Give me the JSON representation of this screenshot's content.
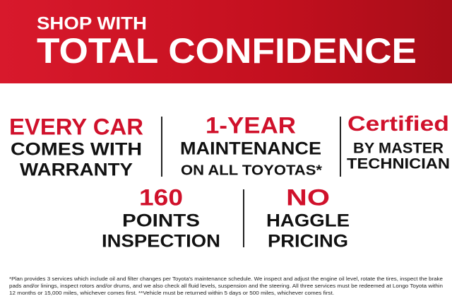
{
  "header": {
    "kicker": "SHOP WITH",
    "title": "TOTAL CONFIDENCE"
  },
  "features": [
    {
      "highlight": "EVERY CAR",
      "lines": [
        "COMES WITH",
        "WARRANTY"
      ]
    },
    {
      "highlight": "1-YEAR",
      "lines": [
        "MAINTENANCE",
        "ON ALL TOYOTAS*"
      ]
    },
    {
      "highlight": "Certified",
      "lines": [
        "BY MASTER",
        "TECHNICIAN"
      ]
    },
    {
      "highlight": "160",
      "lines": [
        "POINTS",
        "INSPECTION"
      ]
    },
    {
      "highlight": "NO",
      "lines": [
        "HAGGLE",
        "PRICING"
      ]
    }
  ],
  "footnote": [
    "*Plan provides 3 services which include oil and filter changes per Toyota's maintenance schedule. We inspect and adjust the engine oil level, rotate the tires, inspect the brake",
    "pads and/or linings, inspect rotors and/or drums, and we also check all fluid levels, suspension and the steering.  All three services must be redeemed at Longo Toyota within",
    "12 months or 15,000 miles, whichever comes first. **Vehicle must be returned within 5 days or 500 miles, whichever comes first."
  ]
}
